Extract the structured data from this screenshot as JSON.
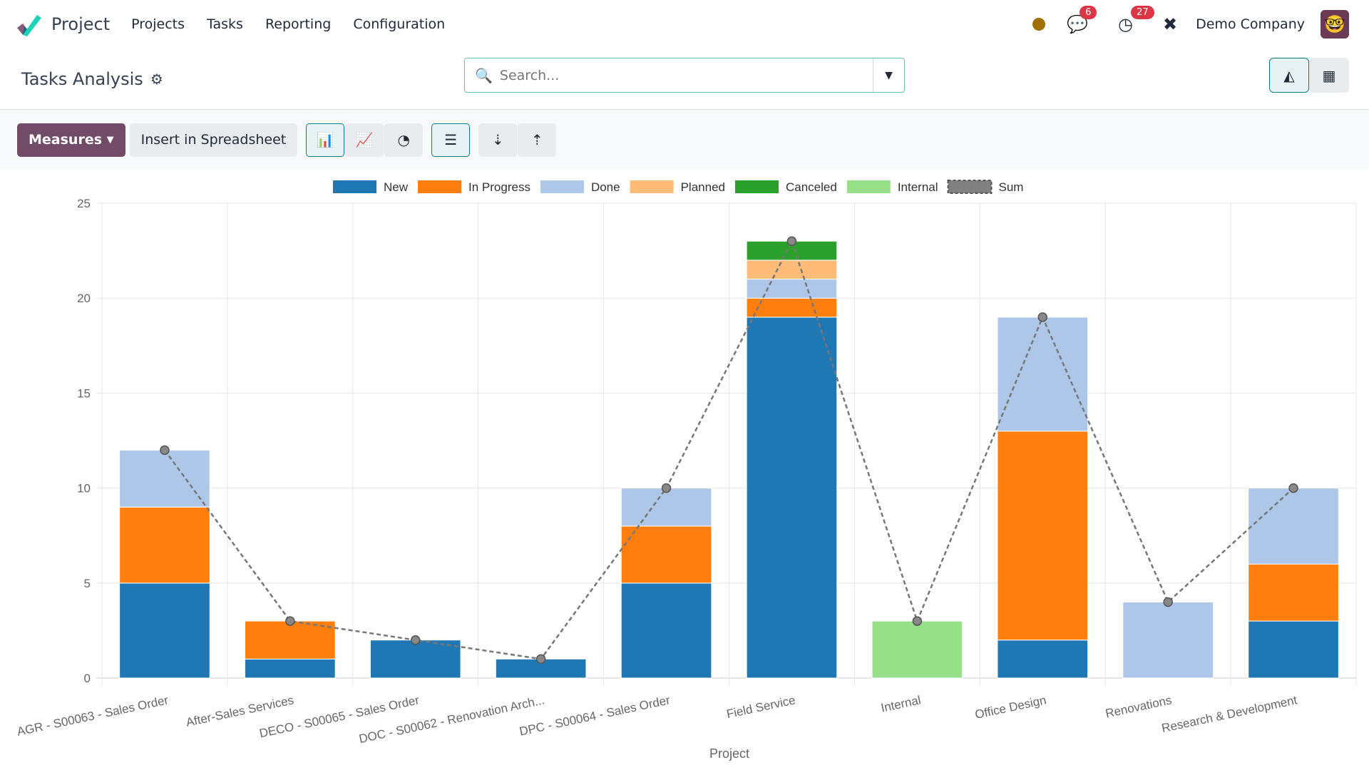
{
  "nav": {
    "app": "Project",
    "menu": [
      "Projects",
      "Tasks",
      "Reporting",
      "Configuration"
    ],
    "messages_count": "6",
    "activities_count": "27",
    "company": "Demo Company"
  },
  "control": {
    "title": "Tasks Analysis",
    "search_placeholder": "Search..."
  },
  "toolbar": {
    "measures": "Measures",
    "insert": "Insert in Spreadsheet"
  },
  "colors": {
    "New": "#1f77b4",
    "In Progress": "#ff7f0e",
    "Done": "#aec7e8",
    "Planned": "#ffbb78",
    "Canceled": "#2ca02c",
    "Internal": "#98df8a",
    "Sum": "#808080",
    "accent": "#714b67"
  },
  "chart_data": {
    "type": "bar",
    "stacked": true,
    "xlabel": "Project",
    "ylabel": "",
    "ylim": [
      0,
      25
    ],
    "yticks": [
      0,
      5,
      10,
      15,
      20,
      25
    ],
    "grid": true,
    "legend": "top",
    "categories": [
      "AGR - S00063 - Sales Order",
      "After-Sales Services",
      "DECO - S00065 - Sales Order",
      "DOC - S00062 - Renovation Arch...",
      "DPC - S00064 - Sales Order",
      "Field Service",
      "Internal",
      "Office Design",
      "Renovations",
      "Research & Development"
    ],
    "series": [
      {
        "name": "New",
        "values": [
          5,
          1,
          2,
          1,
          5,
          19,
          0,
          2,
          0,
          3
        ]
      },
      {
        "name": "In Progress",
        "values": [
          4,
          2,
          0,
          0,
          3,
          1,
          0,
          11,
          0,
          3
        ]
      },
      {
        "name": "Done",
        "values": [
          3,
          0,
          0,
          0,
          2,
          1,
          0,
          6,
          4,
          4
        ]
      },
      {
        "name": "Planned",
        "values": [
          0,
          0,
          0,
          0,
          0,
          1,
          0,
          0,
          0,
          0
        ]
      },
      {
        "name": "Canceled",
        "values": [
          0,
          0,
          0,
          0,
          0,
          1,
          0,
          0,
          0,
          0
        ]
      },
      {
        "name": "Internal",
        "values": [
          0,
          0,
          0,
          0,
          0,
          0,
          3,
          0,
          0,
          0
        ]
      }
    ],
    "sum": {
      "name": "Sum",
      "values": [
        12,
        3,
        2,
        1,
        10,
        23,
        3,
        19,
        4,
        10
      ]
    }
  }
}
